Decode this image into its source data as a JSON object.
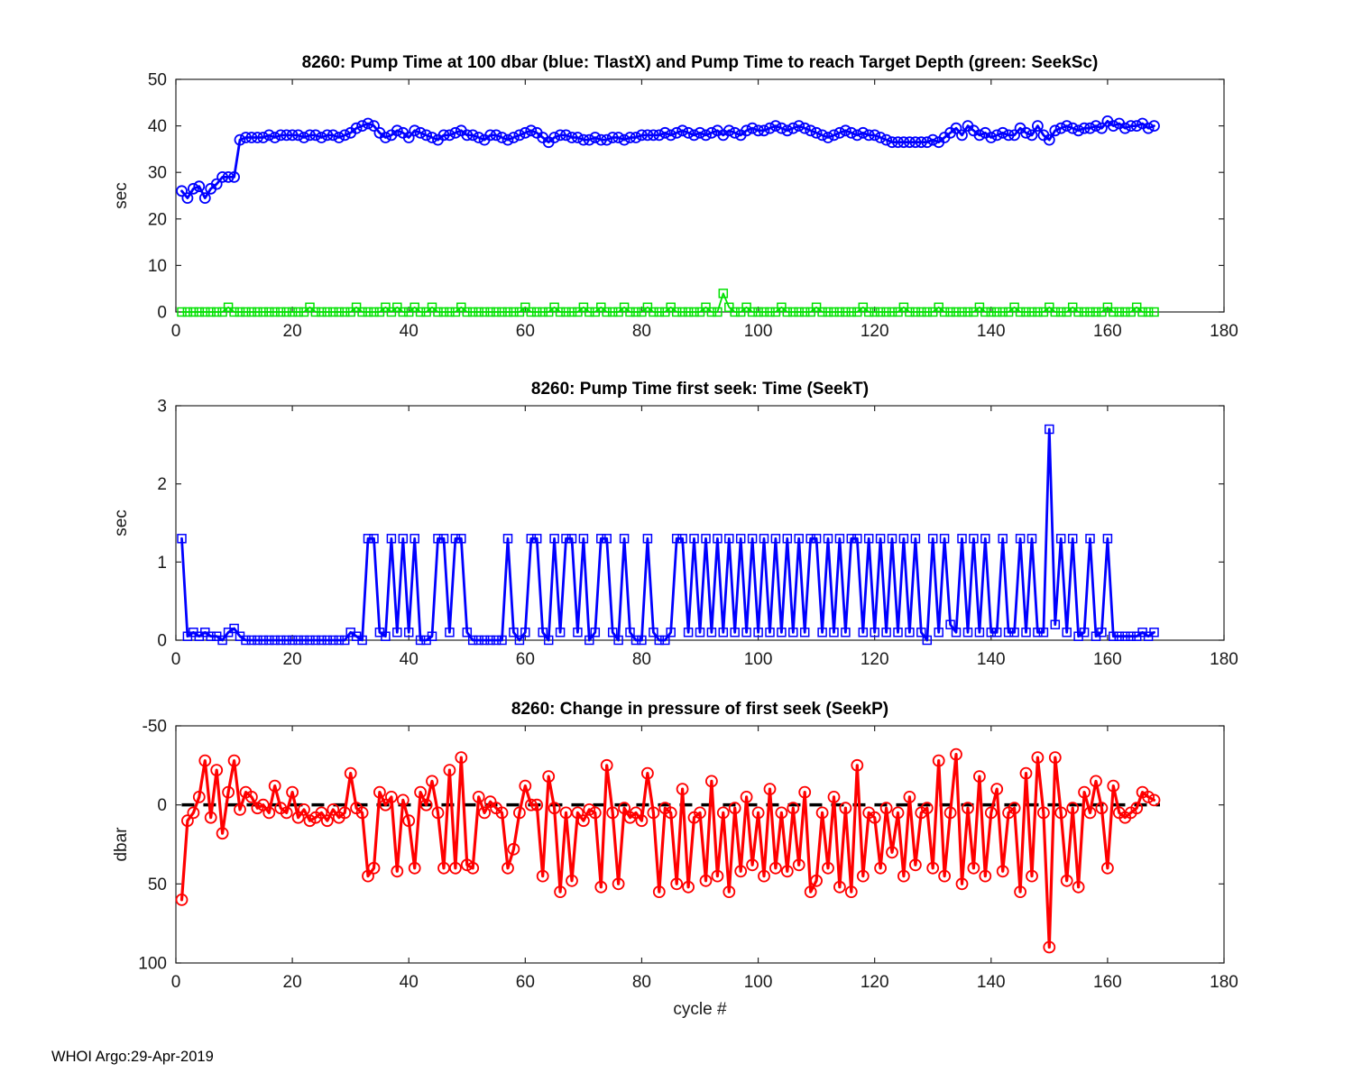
{
  "footer": {
    "text": "WHOI Argo:29-Apr-2019"
  },
  "chart_data": [
    {
      "type": "line",
      "title": "8260:  Pump Time at 100 dbar (blue: TlastX) and Pump Time to reach Target Depth (green: SeekSc)",
      "xlabel": "",
      "ylabel": "sec",
      "xlim": [
        0,
        180
      ],
      "ylim": [
        0,
        50
      ],
      "y_reversed": false,
      "grid": false,
      "xticks": [
        0,
        20,
        40,
        60,
        80,
        100,
        120,
        140,
        160,
        180
      ],
      "yticks": [
        0,
        10,
        20,
        30,
        40,
        50
      ],
      "x_start": 1,
      "series": [
        {
          "name": "TlastX",
          "color": "#0000ff",
          "marker": "circle",
          "marker_size": 11,
          "line_width": 2.8,
          "values": [
            26,
            24.5,
            26.5,
            27,
            24.5,
            26.5,
            27.5,
            29,
            29,
            29,
            37,
            37.5,
            37.5,
            37.5,
            37.5,
            38,
            37.5,
            38,
            38,
            38,
            38,
            37.5,
            38,
            38,
            37.5,
            38,
            38,
            37.5,
            38,
            38.5,
            39.5,
            40,
            40.5,
            40,
            38.5,
            37.5,
            38,
            39,
            38.5,
            37.5,
            39,
            38.5,
            38,
            37.5,
            37,
            38,
            38,
            38.5,
            39,
            38,
            38,
            37.5,
            37,
            38,
            38,
            37.5,
            37,
            37.5,
            38,
            38.5,
            39,
            38.5,
            37.5,
            36.5,
            37.5,
            38,
            38,
            37.5,
            37.5,
            37,
            37,
            37.5,
            37,
            37,
            37.5,
            37.5,
            37,
            37.5,
            37.5,
            38,
            38,
            38,
            38,
            38.5,
            38,
            38.5,
            39,
            38.5,
            38,
            38.5,
            38,
            38.5,
            39,
            38,
            39,
            38.5,
            38,
            39,
            39.5,
            39,
            39,
            39.5,
            40,
            39.5,
            39,
            39.5,
            40,
            39.5,
            39,
            38.5,
            38,
            37.5,
            38,
            38.5,
            39,
            38.5,
            38,
            38.5,
            38,
            38,
            37.5,
            37,
            36.5,
            36.5,
            36.5,
            36.5,
            36.5,
            36.5,
            36.5,
            37,
            36.5,
            37.5,
            38.5,
            39.5,
            38,
            40,
            39,
            38,
            38.5,
            37.5,
            38,
            38.5,
            38,
            38,
            39.5,
            38.5,
            38,
            40,
            38,
            37,
            39,
            39.5,
            40,
            39.5,
            39,
            39.5,
            39.5,
            40,
            39.5,
            41,
            40,
            40.5,
            39.5,
            40,
            40,
            40.5,
            39.5,
            40
          ]
        },
        {
          "name": "SeekSc",
          "color": "#00e100",
          "marker": "square",
          "marker_size": 9,
          "line_width": 1.8,
          "values": [
            0,
            0,
            0,
            0,
            0,
            0,
            0,
            0,
            1,
            0,
            0,
            0,
            0,
            0,
            0,
            0,
            0,
            0,
            0,
            0,
            0,
            0,
            1,
            0,
            0,
            0,
            0,
            0,
            0,
            0,
            1,
            0,
            0,
            0,
            0,
            1,
            0,
            1,
            0,
            0,
            1,
            0,
            0,
            1,
            0,
            0,
            0,
            0,
            1,
            0,
            0,
            0,
            0,
            0,
            0,
            0,
            0,
            0,
            0,
            1,
            0,
            0,
            0,
            0,
            1,
            0,
            0,
            0,
            0,
            1,
            0,
            0,
            1,
            0,
            0,
            0,
            1,
            0,
            0,
            0,
            1,
            0,
            0,
            0,
            1,
            0,
            0,
            0,
            0,
            0,
            1,
            0,
            0,
            4,
            1,
            0,
            0,
            1,
            0,
            0,
            0,
            0,
            0,
            1,
            0,
            0,
            0,
            0,
            0,
            1,
            0,
            0,
            0,
            0,
            0,
            0,
            0,
            1,
            0,
            0,
            0,
            0,
            0,
            0,
            1,
            0,
            0,
            0,
            0,
            0,
            1,
            0,
            0,
            0,
            0,
            0,
            0,
            1,
            0,
            0,
            0,
            0,
            0,
            1,
            0,
            0,
            0,
            0,
            0,
            1,
            0,
            0,
            0,
            1,
            0,
            0,
            0,
            0,
            0,
            1,
            0,
            0,
            0,
            0,
            1,
            0,
            0,
            0
          ]
        }
      ]
    },
    {
      "type": "line",
      "title": "8260: Pump Time first seek: Time (SeekT)",
      "xlabel": "",
      "ylabel": "sec",
      "xlim": [
        0,
        180
      ],
      "ylim": [
        0,
        3
      ],
      "y_reversed": false,
      "grid": false,
      "xticks": [
        0,
        20,
        40,
        60,
        80,
        100,
        120,
        140,
        160,
        180
      ],
      "yticks": [
        0,
        1,
        2,
        3
      ],
      "x_start": 1,
      "series": [
        {
          "name": "SeekT",
          "color": "#0000ff",
          "marker": "square",
          "marker_size": 9,
          "line_width": 2.8,
          "values": [
            1.3,
            0.05,
            0.1,
            0.05,
            0.1,
            0.05,
            0.05,
            0,
            0.1,
            0.15,
            0.05,
            0,
            0,
            0,
            0,
            0,
            0,
            0,
            0,
            0,
            0,
            0,
            0,
            0,
            0,
            0,
            0,
            0,
            0,
            0.1,
            0.05,
            0,
            1.3,
            1.3,
            0.1,
            0.05,
            1.3,
            0.1,
            1.3,
            0.1,
            1.3,
            0,
            0,
            0.05,
            1.3,
            1.3,
            0.1,
            1.3,
            1.3,
            0.1,
            0,
            0,
            0,
            0,
            0,
            0,
            1.3,
            0.1,
            0,
            0.1,
            1.3,
            1.3,
            0.1,
            0,
            1.3,
            0.1,
            1.3,
            1.3,
            0.1,
            1.3,
            0,
            0.1,
            1.3,
            1.3,
            0.1,
            0,
            1.3,
            0.1,
            0,
            0,
            1.3,
            0.1,
            0,
            0,
            0.1,
            1.3,
            1.3,
            0.1,
            1.3,
            0.1,
            1.3,
            0.1,
            1.3,
            0.1,
            1.3,
            0.1,
            1.3,
            0.1,
            1.3,
            0.1,
            1.3,
            0.1,
            1.3,
            0.1,
            1.3,
            0.1,
            1.3,
            0.1,
            1.3,
            1.3,
            0.1,
            1.3,
            0.1,
            1.3,
            0.1,
            1.3,
            1.3,
            0.1,
            1.3,
            0.1,
            1.3,
            0.1,
            1.3,
            0.1,
            1.3,
            0.1,
            1.3,
            0.1,
            0,
            1.3,
            0.1,
            1.3,
            0.2,
            0.1,
            1.3,
            0.1,
            1.3,
            0.1,
            1.3,
            0.1,
            0.1,
            1.3,
            0.1,
            0.1,
            1.3,
            0.1,
            1.3,
            0.1,
            0.1,
            2.7,
            0.2,
            1.3,
            0.1,
            1.3,
            0.05,
            0.1,
            1.3,
            0.05,
            0.1,
            1.3,
            0.05,
            0.05,
            0.05,
            0.05,
            0.05,
            0.1,
            0.05,
            0.1
          ]
        }
      ]
    },
    {
      "type": "line",
      "title": "8260: Change in pressure of first seek (SeekP)",
      "xlabel": "cycle #",
      "ylabel": "dbar",
      "xlim": [
        0,
        180
      ],
      "ylim": [
        -50,
        100
      ],
      "y_reversed": true,
      "grid": false,
      "xticks": [
        0,
        20,
        40,
        60,
        80,
        100,
        120,
        140,
        160,
        180
      ],
      "yticks": [
        -50,
        0,
        50,
        100
      ],
      "x_start": 1,
      "zero_line": {
        "y": 0,
        "x1": 1,
        "x2": 169,
        "color": "#000000",
        "width": 3.5,
        "style": "dashed"
      },
      "series": [
        {
          "name": "SeekP",
          "color": "#ff0000",
          "marker": "circle",
          "marker_size": 12,
          "line_width": 3.2,
          "values": [
            60,
            10,
            5,
            -5,
            -28,
            8,
            -22,
            18,
            -8,
            -28,
            3,
            -8,
            -5,
            2,
            0,
            5,
            -12,
            2,
            5,
            -8,
            8,
            3,
            10,
            8,
            5,
            10,
            3,
            8,
            5,
            -20,
            2,
            5,
            45,
            40,
            -8,
            0,
            -5,
            42,
            -3,
            10,
            40,
            -8,
            0,
            -15,
            5,
            40,
            -22,
            40,
            -30,
            38,
            40,
            -5,
            5,
            -2,
            2,
            5,
            40,
            28,
            5,
            -12,
            0,
            0,
            45,
            -18,
            2,
            55,
            5,
            48,
            5,
            10,
            3,
            5,
            52,
            -25,
            5,
            50,
            2,
            8,
            5,
            10,
            -20,
            5,
            55,
            2,
            5,
            50,
            -10,
            52,
            8,
            5,
            48,
            -15,
            45,
            5,
            55,
            2,
            42,
            -5,
            38,
            5,
            45,
            -10,
            40,
            5,
            42,
            2,
            38,
            -8,
            55,
            48,
            5,
            40,
            -5,
            52,
            2,
            55,
            -25,
            45,
            5,
            8,
            40,
            2,
            30,
            5,
            45,
            -5,
            38,
            5,
            2,
            40,
            -28,
            45,
            5,
            -32,
            50,
            2,
            40,
            -18,
            45,
            5,
            -10,
            42,
            5,
            2,
            55,
            -20,
            45,
            -30,
            5,
            90,
            -30,
            5,
            48,
            2,
            52,
            -8,
            5,
            -15,
            2,
            40,
            -12,
            5,
            8,
            5,
            2,
            -8,
            -5,
            -3
          ]
        }
      ]
    }
  ]
}
